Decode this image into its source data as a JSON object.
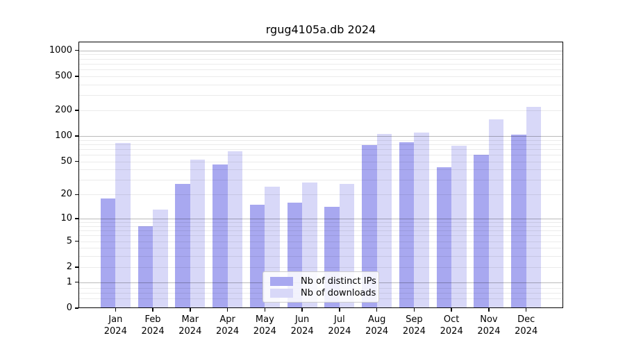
{
  "chart_data": {
    "type": "bar",
    "title": "rgug4105a.db 2024",
    "categories": [
      "Jan 2024",
      "Feb 2024",
      "Mar 2024",
      "Apr 2024",
      "May 2024",
      "Jun 2024",
      "Jul 2024",
      "Aug 2024",
      "Sep 2024",
      "Oct 2024",
      "Nov 2024",
      "Dec 2024"
    ],
    "series": [
      {
        "name": "Nb of distinct IPs",
        "color": "#a8a8f0",
        "values": [
          18,
          8,
          27,
          46,
          15,
          16,
          14,
          78,
          85,
          43,
          60,
          104
        ]
      },
      {
        "name": "Nb of downloads",
        "color": "#d8d8f8",
        "values": [
          83,
          13,
          53,
          66,
          25,
          28,
          27,
          105,
          110,
          77,
          156,
          220
        ]
      }
    ],
    "y_ticks": [
      0,
      1,
      2,
      5,
      10,
      20,
      50,
      100,
      200,
      500,
      1000
    ],
    "ylim": [
      0,
      1266
    ],
    "yscale": "log10(1+v)",
    "xlabel": "",
    "ylabel": "",
    "grid": "on",
    "grid_major_color": "#bababa",
    "grid_minor_color": "#ececec",
    "legend_position": "lower center"
  }
}
